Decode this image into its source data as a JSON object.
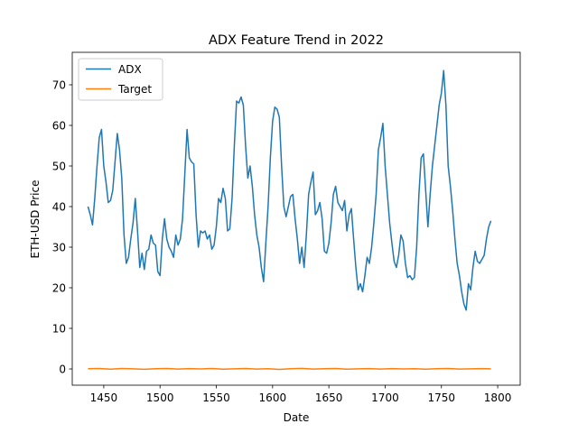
{
  "chart_data": {
    "type": "line",
    "title": "ADX Feature Trend in 2022",
    "xlabel": "Date",
    "ylabel": "ETH-USD Price",
    "xlim": [
      1422,
      1820
    ],
    "ylim": [
      -4,
      78
    ],
    "xticks": [
      1450,
      1500,
      1550,
      1600,
      1650,
      1700,
      1750,
      1800
    ],
    "yticks": [
      0,
      10,
      20,
      30,
      40,
      50,
      60,
      70
    ],
    "grid": false,
    "legend_position": "top-left",
    "series": [
      {
        "name": "ADX",
        "color": "#1f77b4",
        "points": [
          [
            1436,
            40
          ],
          [
            1438,
            38
          ],
          [
            1440,
            35.5
          ],
          [
            1442,
            42
          ],
          [
            1444,
            50
          ],
          [
            1446,
            57
          ],
          [
            1448,
            59
          ],
          [
            1450,
            50
          ],
          [
            1452,
            46
          ],
          [
            1454,
            41
          ],
          [
            1456,
            41.5
          ],
          [
            1458,
            44
          ],
          [
            1460,
            51
          ],
          [
            1462,
            58
          ],
          [
            1464,
            54
          ],
          [
            1466,
            47
          ],
          [
            1468,
            33
          ],
          [
            1470,
            26
          ],
          [
            1472,
            27.5
          ],
          [
            1474,
            32
          ],
          [
            1476,
            36
          ],
          [
            1478,
            42
          ],
          [
            1480,
            34
          ],
          [
            1482,
            25
          ],
          [
            1484,
            28.5
          ],
          [
            1486,
            24.5
          ],
          [
            1488,
            29
          ],
          [
            1490,
            29.5
          ],
          [
            1492,
            33
          ],
          [
            1494,
            31
          ],
          [
            1496,
            30.5
          ],
          [
            1498,
            24
          ],
          [
            1500,
            23
          ],
          [
            1502,
            32
          ],
          [
            1504,
            37
          ],
          [
            1506,
            32
          ],
          [
            1508,
            30
          ],
          [
            1510,
            29
          ],
          [
            1512,
            27.5
          ],
          [
            1514,
            33
          ],
          [
            1516,
            30.5
          ],
          [
            1518,
            32
          ],
          [
            1520,
            37
          ],
          [
            1522,
            48
          ],
          [
            1524,
            59
          ],
          [
            1526,
            52
          ],
          [
            1528,
            51
          ],
          [
            1530,
            50.5
          ],
          [
            1532,
            38
          ],
          [
            1534,
            30
          ],
          [
            1536,
            34
          ],
          [
            1538,
            33.5
          ],
          [
            1540,
            34
          ],
          [
            1542,
            32
          ],
          [
            1544,
            33
          ],
          [
            1546,
            29.5
          ],
          [
            1548,
            30.5
          ],
          [
            1550,
            35
          ],
          [
            1552,
            42
          ],
          [
            1554,
            41
          ],
          [
            1556,
            44.5
          ],
          [
            1558,
            42
          ],
          [
            1560,
            34
          ],
          [
            1562,
            34.5
          ],
          [
            1564,
            42
          ],
          [
            1566,
            55
          ],
          [
            1568,
            66
          ],
          [
            1570,
            65.5
          ],
          [
            1572,
            67
          ],
          [
            1574,
            65
          ],
          [
            1576,
            55
          ],
          [
            1578,
            47
          ],
          [
            1580,
            50
          ],
          [
            1582,
            45
          ],
          [
            1584,
            38
          ],
          [
            1586,
            33
          ],
          [
            1588,
            30
          ],
          [
            1590,
            25
          ],
          [
            1592,
            21.5
          ],
          [
            1594,
            31
          ],
          [
            1596,
            40
          ],
          [
            1598,
            52
          ],
          [
            1600,
            61
          ],
          [
            1602,
            64.5
          ],
          [
            1604,
            64
          ],
          [
            1606,
            62
          ],
          [
            1608,
            50
          ],
          [
            1610,
            40
          ],
          [
            1612,
            37.5
          ],
          [
            1614,
            40
          ],
          [
            1616,
            42.5
          ],
          [
            1618,
            43
          ],
          [
            1620,
            37
          ],
          [
            1622,
            32
          ],
          [
            1624,
            26
          ],
          [
            1626,
            30
          ],
          [
            1628,
            25
          ],
          [
            1630,
            33
          ],
          [
            1632,
            43
          ],
          [
            1634,
            46
          ],
          [
            1636,
            48.5
          ],
          [
            1638,
            38
          ],
          [
            1640,
            39
          ],
          [
            1642,
            41
          ],
          [
            1644,
            37
          ],
          [
            1646,
            29
          ],
          [
            1648,
            28.5
          ],
          [
            1650,
            31
          ],
          [
            1652,
            36
          ],
          [
            1654,
            43
          ],
          [
            1656,
            45
          ],
          [
            1658,
            41
          ],
          [
            1660,
            40
          ],
          [
            1662,
            39
          ],
          [
            1664,
            41.5
          ],
          [
            1666,
            34
          ],
          [
            1668,
            38
          ],
          [
            1670,
            39.5
          ],
          [
            1672,
            32
          ],
          [
            1674,
            25
          ],
          [
            1676,
            19.5
          ],
          [
            1678,
            21
          ],
          [
            1680,
            19
          ],
          [
            1682,
            23
          ],
          [
            1684,
            27.5
          ],
          [
            1686,
            26
          ],
          [
            1688,
            30
          ],
          [
            1690,
            36
          ],
          [
            1692,
            43
          ],
          [
            1694,
            54
          ],
          [
            1696,
            57
          ],
          [
            1698,
            60.5
          ],
          [
            1700,
            50
          ],
          [
            1702,
            43
          ],
          [
            1704,
            36
          ],
          [
            1706,
            31
          ],
          [
            1708,
            26.5
          ],
          [
            1710,
            25
          ],
          [
            1712,
            28
          ],
          [
            1714,
            33
          ],
          [
            1716,
            31.5
          ],
          [
            1718,
            26
          ],
          [
            1720,
            22.5
          ],
          [
            1722,
            23
          ],
          [
            1724,
            22
          ],
          [
            1726,
            22.5
          ],
          [
            1728,
            30
          ],
          [
            1730,
            43
          ],
          [
            1732,
            52
          ],
          [
            1734,
            53
          ],
          [
            1736,
            44
          ],
          [
            1738,
            35
          ],
          [
            1740,
            43
          ],
          [
            1742,
            50
          ],
          [
            1744,
            55
          ],
          [
            1746,
            60
          ],
          [
            1748,
            65
          ],
          [
            1750,
            68
          ],
          [
            1752,
            73.5
          ],
          [
            1754,
            65
          ],
          [
            1756,
            50
          ],
          [
            1758,
            45
          ],
          [
            1760,
            39
          ],
          [
            1762,
            32
          ],
          [
            1764,
            26
          ],
          [
            1766,
            23
          ],
          [
            1768,
            19
          ],
          [
            1770,
            16
          ],
          [
            1772,
            14.5
          ],
          [
            1774,
            21
          ],
          [
            1776,
            19.5
          ],
          [
            1778,
            25
          ],
          [
            1780,
            29
          ],
          [
            1782,
            26.5
          ],
          [
            1784,
            26
          ],
          [
            1786,
            27
          ],
          [
            1788,
            28
          ],
          [
            1790,
            32
          ],
          [
            1792,
            35
          ],
          [
            1794,
            36.5
          ]
        ]
      },
      {
        "name": "Target",
        "color": "#ff7f0e",
        "points": [
          [
            1436,
            0.05
          ],
          [
            1446,
            0.12
          ],
          [
            1456,
            -0.05
          ],
          [
            1466,
            0.1
          ],
          [
            1476,
            0.02
          ],
          [
            1486,
            -0.08
          ],
          [
            1496,
            0.06
          ],
          [
            1506,
            0.1
          ],
          [
            1516,
            -0.04
          ],
          [
            1526,
            0.08
          ],
          [
            1536,
            0.0
          ],
          [
            1546,
            0.12
          ],
          [
            1556,
            -0.06
          ],
          [
            1566,
            0.04
          ],
          [
            1576,
            0.1
          ],
          [
            1586,
            -0.03
          ],
          [
            1596,
            0.07
          ],
          [
            1606,
            -0.1
          ],
          [
            1616,
            0.05
          ],
          [
            1626,
            0.14
          ],
          [
            1636,
            -0.02
          ],
          [
            1646,
            0.06
          ],
          [
            1656,
            0.1
          ],
          [
            1666,
            -0.05
          ],
          [
            1676,
            0.03
          ],
          [
            1686,
            0.09
          ],
          [
            1696,
            -0.04
          ],
          [
            1706,
            0.08
          ],
          [
            1716,
            0.0
          ],
          [
            1726,
            0.06
          ],
          [
            1736,
            -0.07
          ],
          [
            1746,
            0.05
          ],
          [
            1756,
            0.1
          ],
          [
            1766,
            -0.02
          ],
          [
            1776,
            0.04
          ],
          [
            1786,
            0.08
          ],
          [
            1794,
            0.03
          ]
        ]
      }
    ]
  }
}
